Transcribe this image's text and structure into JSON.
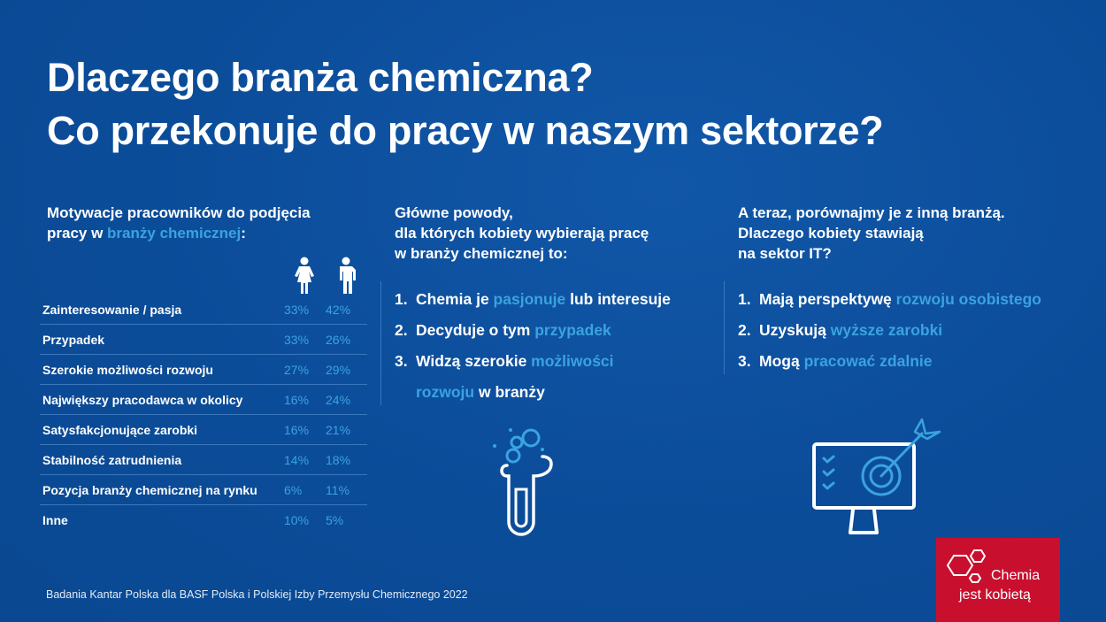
{
  "title": {
    "line1": "Dlaczego branża chemiczna?",
    "line2": "Co przekonuje do pracy w naszym sektorze?"
  },
  "left": {
    "heading_line1": "Motywacje pracowników do podjęcia",
    "heading_pre": "pracy w ",
    "heading_hl": "branży chemicznej",
    "heading_post": ":",
    "columns": [
      "woman-icon",
      "man-icon"
    ],
    "rows": [
      {
        "label": "Zainteresowanie / pasja",
        "women": "33%",
        "men": "42%"
      },
      {
        "label": "Przypadek",
        "women": "33%",
        "men": "26%"
      },
      {
        "label": "Szerokie możliwości rozwoju",
        "women": "27%",
        "men": "29%"
      },
      {
        "label": "Największy pracodawca w okolicy",
        "women": "16%",
        "men": "24%"
      },
      {
        "label": "Satysfakcjonujące zarobki",
        "women": "16%",
        "men": "21%"
      },
      {
        "label": "Stabilność zatrudnienia",
        "women": "14%",
        "men": "18%"
      },
      {
        "label": "Pozycja branży chemicznej na rynku",
        "women": "6%",
        "men": "11%"
      },
      {
        "label": "Inne",
        "women": "10%",
        "men": "5%"
      }
    ]
  },
  "middle": {
    "heading": [
      "Główne powody,",
      "dla których kobiety wybierają pracę",
      "w branży chemicznej to:"
    ],
    "items": [
      {
        "num": "1.",
        "a": "Chemia je ",
        "hl": "pasjonuje",
        "b": " lub interesuje"
      },
      {
        "num": "2.",
        "a": "Decyduje o tym ",
        "hl": "przypadek",
        "b": ""
      },
      {
        "num": "3.",
        "a": "Widzą szerokie ",
        "hl": "możliwości",
        "b": ""
      },
      {
        "num": "",
        "a": "",
        "hl": "rozwoju",
        "b": " w branży"
      }
    ]
  },
  "right": {
    "heading": [
      "A teraz, porównajmy je z inną branżą.",
      "Dlaczego kobiety stawiają",
      "na sektor IT?"
    ],
    "items": [
      {
        "num": "1.",
        "a": "Mają perspektywę ",
        "hl": "rozwoju osobistego",
        "b": ""
      },
      {
        "num": "2.",
        "a": "Uzyskują ",
        "hl": "wyższe zarobki",
        "b": ""
      },
      {
        "num": "3.",
        "a": "Mogą ",
        "hl": "pracować zdalnie",
        "b": ""
      }
    ]
  },
  "footer": "Badania Kantar Polska dla BASF Polska i Polskiej Izby Przemysłu Chemicznego 2022",
  "logo": {
    "line1": "Chemia",
    "line2": "jest kobietą"
  },
  "colors": {
    "background": "#0b4c99",
    "accent": "#3aa3e0",
    "logo_red": "#c8102e"
  }
}
